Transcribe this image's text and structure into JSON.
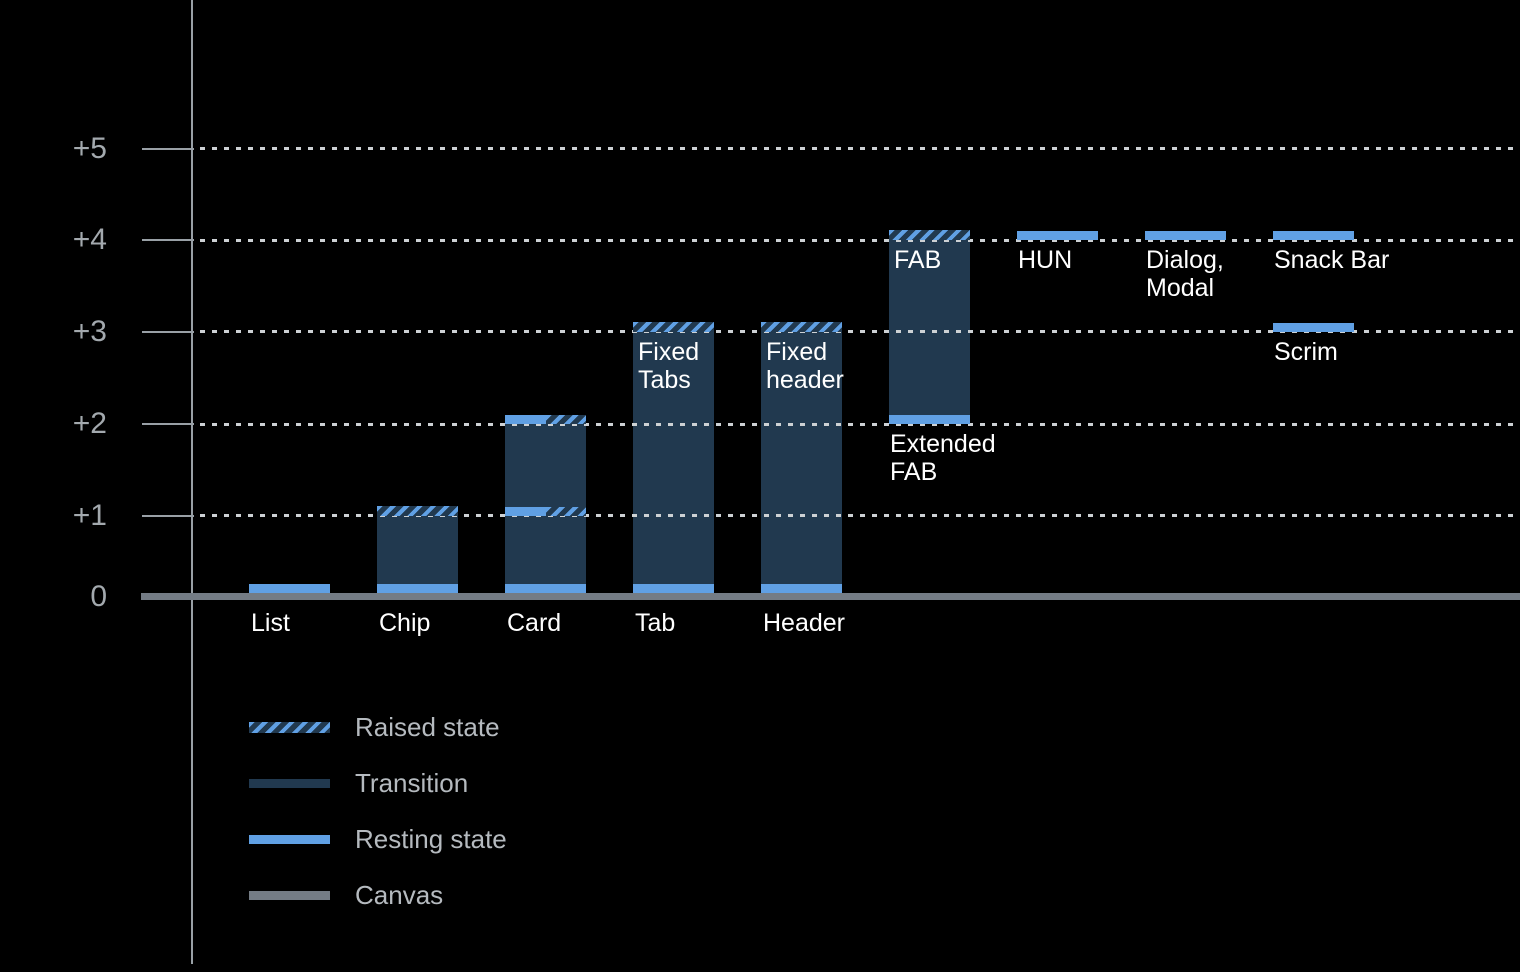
{
  "chart_data": {
    "type": "bar",
    "title": "",
    "description": "Elevation diagram of UI components: resting state, transition range and raised state per component",
    "y_axis": {
      "range": [
        0,
        5
      ],
      "grid": "dotted-horizontal",
      "ticks": [
        {
          "label": "+5",
          "level": 5
        },
        {
          "label": "+4",
          "level": 4
        },
        {
          "label": "+3",
          "level": 3
        },
        {
          "label": "+2",
          "level": 2
        },
        {
          "label": "+1",
          "level": 1
        },
        {
          "label": "0",
          "level": 0
        }
      ]
    },
    "colors": {
      "background": "#000000",
      "resting": "#60A0E4",
      "raised_stripe": "#60A0E4",
      "transition": "#21394F",
      "canvas": "#747C85",
      "grid_dots": "#CDD1D4",
      "axis": "#99A0A6",
      "axis_label_text": "#A3A9AE",
      "legend_text": "#B5BABF",
      "bar_label_text": "#FFFFFF"
    },
    "bars": [
      {
        "id": "list",
        "name": "List",
        "column": 0,
        "values": {
          "resting": 0
        },
        "segments": [
          {
            "kind": "resting",
            "level": 0
          }
        ],
        "labels": [
          {
            "lines": [
              "List"
            ],
            "placement": "below-axis"
          }
        ]
      },
      {
        "id": "chip",
        "name": "Chip",
        "column": 1,
        "values": {
          "resting": 0,
          "raised": 1
        },
        "segments": [
          {
            "kind": "resting",
            "level": 0
          },
          {
            "kind": "transition",
            "from": 0,
            "to": 1
          },
          {
            "kind": "raised",
            "level": 1
          }
        ],
        "labels": [
          {
            "lines": [
              "Chip"
            ],
            "placement": "below-axis"
          }
        ]
      },
      {
        "id": "card",
        "name": "Card",
        "column": 2,
        "values": {
          "resting": 0,
          "intermediate": 1,
          "raised": 2
        },
        "segments": [
          {
            "kind": "resting",
            "level": 0
          },
          {
            "kind": "transition",
            "from": 0,
            "to": 1
          },
          {
            "kind": "resting-raised",
            "level": 1
          },
          {
            "kind": "transition",
            "from": 1,
            "to": 2
          },
          {
            "kind": "resting-raised",
            "level": 2
          }
        ],
        "labels": [
          {
            "lines": [
              "Card"
            ],
            "placement": "below-axis"
          }
        ]
      },
      {
        "id": "tab",
        "name": "Tab",
        "column": 3,
        "values": {
          "resting": 0,
          "raised": 3
        },
        "segments": [
          {
            "kind": "resting",
            "level": 0
          },
          {
            "kind": "transition",
            "from": 0,
            "to": 3
          },
          {
            "kind": "raised",
            "level": 3
          }
        ],
        "labels": [
          {
            "lines": [
              "Tab"
            ],
            "placement": "below-axis"
          },
          {
            "lines": [
              "Fixed",
              "Tabs"
            ],
            "placement": "inside-top",
            "level": 3
          }
        ]
      },
      {
        "id": "header",
        "name": "Header",
        "column": 4,
        "values": {
          "resting": 0,
          "raised": 3
        },
        "segments": [
          {
            "kind": "resting",
            "level": 0
          },
          {
            "kind": "transition",
            "from": 0,
            "to": 3
          },
          {
            "kind": "raised",
            "level": 3
          }
        ],
        "labels": [
          {
            "lines": [
              "Header"
            ],
            "placement": "below-axis"
          },
          {
            "lines": [
              "Fixed",
              "header"
            ],
            "placement": "inside-top",
            "level": 3
          }
        ]
      },
      {
        "id": "fab",
        "name": "FAB / Extended FAB",
        "column": 5,
        "values": {
          "resting": 2,
          "raised": 4
        },
        "segments": [
          {
            "kind": "resting",
            "level": 2
          },
          {
            "kind": "transition",
            "from": 2,
            "to": 4
          },
          {
            "kind": "raised",
            "level": 4
          }
        ],
        "labels": [
          {
            "lines": [
              "FAB"
            ],
            "placement": "inside-top",
            "level": 4
          },
          {
            "lines": [
              "Extended",
              "FAB"
            ],
            "placement": "below-level",
            "level": 2
          }
        ]
      },
      {
        "id": "hun",
        "name": "HUN",
        "column": 6,
        "values": {
          "resting": 4
        },
        "segments": [
          {
            "kind": "resting",
            "level": 4
          }
        ],
        "labels": [
          {
            "lines": [
              "HUN"
            ],
            "placement": "below-level",
            "level": 4
          }
        ]
      },
      {
        "id": "dialog-modal",
        "name": "Dialog, Modal",
        "column": 7,
        "values": {
          "resting": 4
        },
        "segments": [
          {
            "kind": "resting",
            "level": 4
          }
        ],
        "labels": [
          {
            "lines": [
              "Dialog,",
              "Modal"
            ],
            "placement": "below-level",
            "level": 4
          }
        ]
      },
      {
        "id": "snack-bar",
        "name": "Snack Bar",
        "column": 8,
        "values": {
          "resting": 4
        },
        "segments": [
          {
            "kind": "resting",
            "level": 4
          }
        ],
        "labels": [
          {
            "lines": [
              "Snack Bar"
            ],
            "placement": "below-level",
            "level": 4
          }
        ]
      },
      {
        "id": "scrim",
        "name": "Scrim",
        "column": 8,
        "values": {
          "resting": 3
        },
        "segments": [
          {
            "kind": "resting",
            "level": 3
          }
        ],
        "labels": [
          {
            "lines": [
              "Scrim"
            ],
            "placement": "below-level",
            "level": 3
          }
        ]
      }
    ],
    "legend": {
      "position": "bottom-left",
      "items": [
        {
          "key": "raised",
          "label": "Raised state"
        },
        {
          "key": "transition",
          "label": "Transition"
        },
        {
          "key": "resting",
          "label": "Resting state"
        },
        {
          "key": "canvas",
          "label": "Canvas"
        }
      ]
    }
  }
}
